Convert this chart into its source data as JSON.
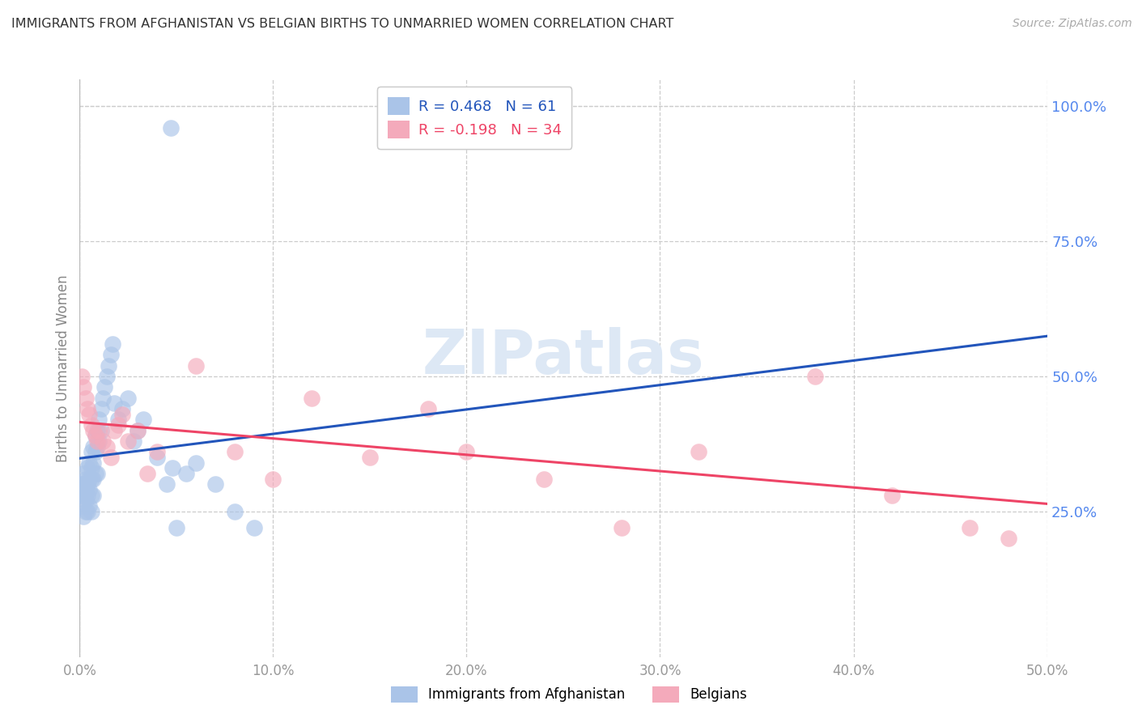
{
  "title": "IMMIGRANTS FROM AFGHANISTAN VS BELGIAN BIRTHS TO UNMARRIED WOMEN CORRELATION CHART",
  "source": "Source: ZipAtlas.com",
  "ylabel": "Births to Unmarried Women",
  "xlim": [
    0.0,
    0.5
  ],
  "ylim": [
    -0.02,
    1.05
  ],
  "xticks": [
    0.0,
    0.1,
    0.2,
    0.3,
    0.4,
    0.5
  ],
  "xticklabels": [
    "0.0%",
    "10.0%",
    "20.0%",
    "30.0%",
    "40.0%",
    "50.0%"
  ],
  "yticks_right": [
    0.25,
    0.5,
    0.75,
    1.0
  ],
  "yticklabels_right": [
    "25.0%",
    "50.0%",
    "75.0%",
    "100.0%"
  ],
  "blue_R": "0.468",
  "blue_N": "61",
  "pink_R": "-0.198",
  "pink_N": "34",
  "blue_color": "#aac4e8",
  "pink_color": "#f4aabb",
  "blue_line_color": "#2255bb",
  "pink_line_color": "#ee4466",
  "grid_color": "#cccccc",
  "right_tick_color": "#5588ee",
  "watermark": "ZIPatlas",
  "blue_x": [
    0.001,
    0.001,
    0.001,
    0.002,
    0.002,
    0.002,
    0.002,
    0.003,
    0.003,
    0.003,
    0.003,
    0.004,
    0.004,
    0.004,
    0.004,
    0.005,
    0.005,
    0.005,
    0.005,
    0.006,
    0.006,
    0.006,
    0.006,
    0.006,
    0.007,
    0.007,
    0.007,
    0.007,
    0.008,
    0.008,
    0.008,
    0.009,
    0.009,
    0.009,
    0.01,
    0.01,
    0.011,
    0.011,
    0.012,
    0.013,
    0.014,
    0.015,
    0.016,
    0.017,
    0.018,
    0.02,
    0.022,
    0.025,
    0.028,
    0.03,
    0.033,
    0.04,
    0.045,
    0.048,
    0.055,
    0.06,
    0.07,
    0.08,
    0.09,
    0.047,
    0.05
  ],
  "blue_y": [
    0.3,
    0.28,
    0.26,
    0.32,
    0.3,
    0.28,
    0.24,
    0.31,
    0.29,
    0.27,
    0.25,
    0.33,
    0.3,
    0.28,
    0.25,
    0.34,
    0.31,
    0.29,
    0.26,
    0.36,
    0.33,
    0.31,
    0.28,
    0.25,
    0.37,
    0.34,
    0.31,
    0.28,
    0.39,
    0.36,
    0.32,
    0.4,
    0.37,
    0.32,
    0.42,
    0.38,
    0.44,
    0.4,
    0.46,
    0.48,
    0.5,
    0.52,
    0.54,
    0.56,
    0.45,
    0.42,
    0.44,
    0.46,
    0.38,
    0.4,
    0.42,
    0.35,
    0.3,
    0.33,
    0.32,
    0.34,
    0.3,
    0.25,
    0.22,
    0.96,
    0.22
  ],
  "pink_x": [
    0.001,
    0.002,
    0.003,
    0.004,
    0.005,
    0.006,
    0.007,
    0.008,
    0.009,
    0.01,
    0.012,
    0.014,
    0.016,
    0.018,
    0.02,
    0.022,
    0.025,
    0.03,
    0.035,
    0.04,
    0.06,
    0.08,
    0.1,
    0.12,
    0.15,
    0.18,
    0.2,
    0.24,
    0.28,
    0.32,
    0.38,
    0.42,
    0.46,
    0.48
  ],
  "pink_y": [
    0.5,
    0.48,
    0.46,
    0.44,
    0.43,
    0.41,
    0.4,
    0.39,
    0.38,
    0.4,
    0.38,
    0.37,
    0.35,
    0.4,
    0.41,
    0.43,
    0.38,
    0.4,
    0.32,
    0.36,
    0.52,
    0.36,
    0.31,
    0.46,
    0.35,
    0.44,
    0.36,
    0.31,
    0.22,
    0.36,
    0.5,
    0.28,
    0.22,
    0.2
  ]
}
